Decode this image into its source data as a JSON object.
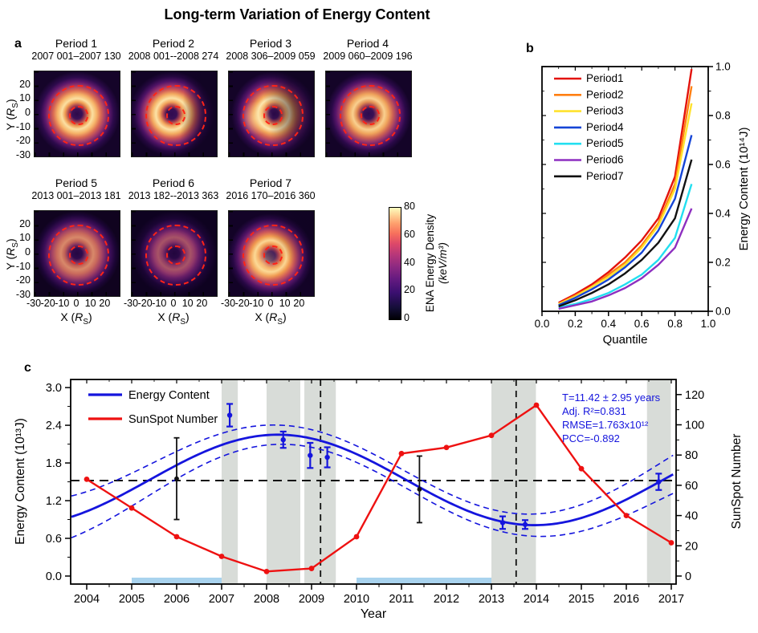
{
  "figure": {
    "title": "Long-term Variation of Energy Content",
    "background": "#ffffff"
  },
  "panel_a": {
    "label": "a",
    "periods": [
      {
        "title": "Period 1",
        "dates": "2007 001–2007 130"
      },
      {
        "title": "Period 2",
        "dates": "2008 001--2008 274"
      },
      {
        "title": "Period 3",
        "dates": "2008 306–2009 059"
      },
      {
        "title": "Period 4",
        "dates": "2009 060–2009 196"
      },
      {
        "title": "Period 5",
        "dates": "2013 001–2013 181"
      },
      {
        "title": "Period 6",
        "dates": "2013 182--2013 363"
      },
      {
        "title": "Period 7",
        "dates": "2016 170–2016 360"
      }
    ],
    "y_axis": {
      "label_pre": "Y (",
      "label_sym": "R",
      "label_sub": "S",
      "label_post": ")",
      "ticks": [
        20,
        10,
        0,
        -10,
        -20,
        -30
      ]
    },
    "x_axis": {
      "label_pre": "X (",
      "label_sym": "R",
      "label_sub": "S",
      "label_post": ")",
      "ticks": [
        -30,
        -20,
        -10,
        0,
        10,
        20
      ]
    },
    "colorbar": {
      "ticks": [
        0,
        20,
        40,
        60,
        80
      ],
      "label_line1": "ENA Energy Density",
      "label_line2": "(keV/m³)"
    }
  },
  "panel_b_label": "b",
  "panel_c_label": "c",
  "chart_data": [
    {
      "type": "line",
      "title": "",
      "xlabel": "Quantile",
      "ylabel": "Energy Content (10¹⁴J)",
      "xlim": [
        0.0,
        1.0
      ],
      "ylim": [
        0.0,
        1.0
      ],
      "x_ticks": [
        0.0,
        0.2,
        0.4,
        0.6,
        0.8,
        1.0
      ],
      "y_ticks": [
        0.0,
        0.2,
        0.4,
        0.6,
        0.8,
        1.0
      ],
      "x": [
        0.1,
        0.2,
        0.3,
        0.4,
        0.5,
        0.6,
        0.7,
        0.8,
        0.9
      ],
      "legend_position": "upper-left",
      "series": [
        {
          "name": "Period1",
          "color": "#e3120b",
          "values": [
            0.035,
            0.07,
            0.11,
            0.16,
            0.22,
            0.29,
            0.38,
            0.55,
            0.99
          ]
        },
        {
          "name": "Period2",
          "color": "#ff7f11",
          "values": [
            0.03,
            0.065,
            0.1,
            0.15,
            0.2,
            0.27,
            0.36,
            0.52,
            0.92
          ]
        },
        {
          "name": "Period3",
          "color": "#ffe22e",
          "values": [
            0.03,
            0.06,
            0.1,
            0.14,
            0.19,
            0.26,
            0.35,
            0.5,
            0.85
          ]
        },
        {
          "name": "Period4",
          "color": "#1545d6",
          "values": [
            0.025,
            0.055,
            0.09,
            0.13,
            0.18,
            0.24,
            0.33,
            0.46,
            0.72
          ]
        },
        {
          "name": "Period5",
          "color": "#22dff0",
          "values": [
            0.015,
            0.03,
            0.05,
            0.075,
            0.11,
            0.15,
            0.21,
            0.3,
            0.52
          ]
        },
        {
          "name": "Period6",
          "color": "#8d2fc0",
          "values": [
            0.01,
            0.025,
            0.04,
            0.065,
            0.095,
            0.135,
            0.19,
            0.26,
            0.42
          ]
        },
        {
          "name": "Period7",
          "color": "#111111",
          "values": [
            0.02,
            0.045,
            0.075,
            0.11,
            0.155,
            0.21,
            0.28,
            0.38,
            0.62
          ]
        }
      ]
    },
    {
      "type": "composite",
      "xlabel": "Year",
      "ylabel_left": "Energy Content (10¹³J)",
      "ylabel_right": "SunSpot Number",
      "xlim": [
        2003.6,
        2017.1
      ],
      "ylim_left": [
        -0.13,
        3.13
      ],
      "x_ticks": [
        2004,
        2005,
        2006,
        2007,
        2008,
        2009,
        2010,
        2011,
        2012,
        2013,
        2014,
        2015,
        2016,
        2017
      ],
      "left_ticks": [
        0.0,
        0.6,
        1.2,
        1.8,
        2.4,
        3.0
      ],
      "right_ticks": [
        0,
        20,
        40,
        60,
        80,
        100,
        120
      ],
      "legend": [
        {
          "name": "Energy Content",
          "color": "#1515dd"
        },
        {
          "name": "SunSpot Number",
          "color": "#ee1111"
        }
      ],
      "annotation": {
        "color": "#1515dd",
        "lines": [
          "T=11.42 ± 2.95 years",
          "Adj. R²=0.831",
          "RMSE=1.763x10¹²",
          "PCC=-0.892"
        ]
      },
      "sunspot": {
        "color": "#ee1111",
        "x": [
          2004,
          2005,
          2006,
          2007,
          2008,
          2009,
          2010,
          2011,
          2012,
          2013,
          2014,
          2015,
          2016,
          2017
        ],
        "y": [
          64,
          45,
          26,
          13,
          3,
          5,
          26,
          81,
          85,
          93,
          113,
          71,
          40,
          22
        ]
      },
      "energy_fit": {
        "color": "#1515dd",
        "mean": 1.53,
        "amplitude": 0.72,
        "period_years": 11.42,
        "peak_year": 2008.25,
        "band_base": 0.13,
        "band_edge_extra": 0.2,
        "band_center": 2010.6,
        "band_half_span": 6.9
      },
      "mean_level": 1.52,
      "vlines": [
        2009.2,
        2013.55
      ],
      "shaded_periods": [
        [
          2007.0,
          2007.36
        ],
        [
          2008.0,
          2008.75
        ],
        [
          2008.84,
          2009.54
        ],
        [
          2013.0,
          2013.99
        ],
        [
          2016.46,
          2016.99
        ]
      ],
      "shaded_color": "#d8dcd8",
      "data_gap_bars": {
        "color": "#a9d3ee",
        "ranges": [
          [
            2005,
            2007
          ],
          [
            2010,
            2013
          ]
        ]
      },
      "energy_points_blue": [
        {
          "year": 2007.18,
          "value": 2.56,
          "err": 0.18
        },
        {
          "year": 2008.37,
          "value": 2.17,
          "err": 0.13
        },
        {
          "year": 2008.97,
          "value": 1.92,
          "err": 0.2
        },
        {
          "year": 2009.35,
          "value": 1.89,
          "err": 0.16
        },
        {
          "year": 2013.25,
          "value": 0.85,
          "err": 0.1
        },
        {
          "year": 2013.75,
          "value": 0.82,
          "err": 0.07
        },
        {
          "year": 2016.72,
          "value": 1.5,
          "err": 0.13
        }
      ],
      "energy_points_black": [
        {
          "year": 2006.0,
          "value": 1.55,
          "err": 0.65
        },
        {
          "year": 2011.4,
          "value": 1.38,
          "err": 0.53
        }
      ]
    }
  ]
}
